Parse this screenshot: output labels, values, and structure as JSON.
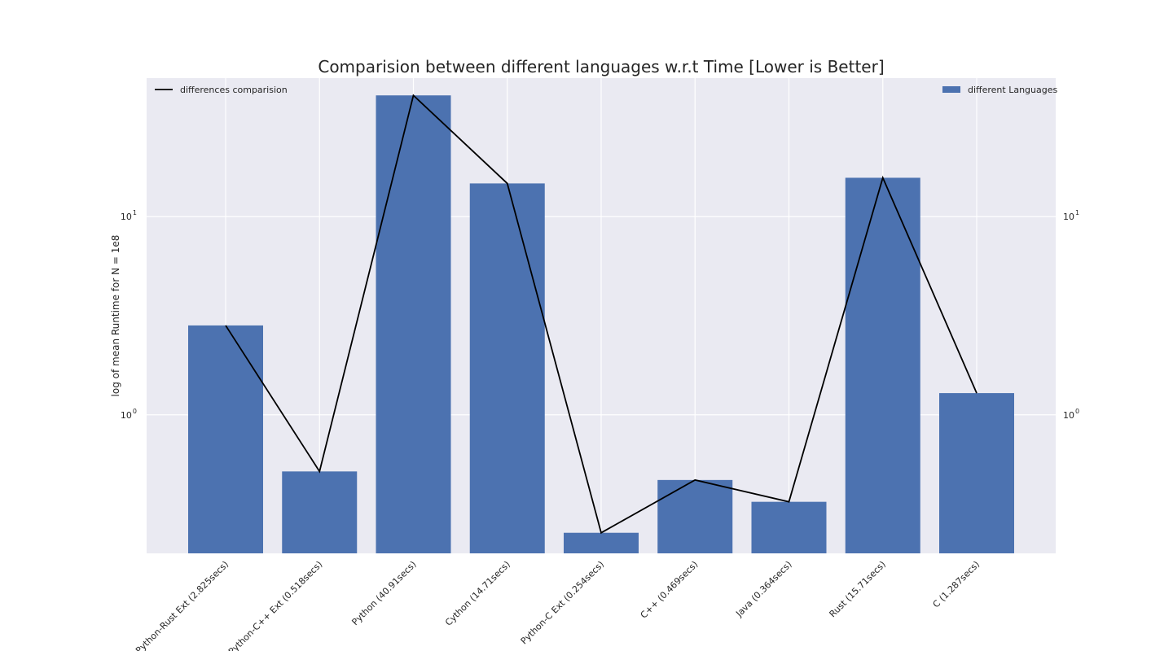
{
  "chart_data": {
    "type": "bar",
    "title": "Comparision between different languages w.r.t Time [Lower is Better]",
    "xlabel": "",
    "ylabel": "log of mean Runtime for N = 1e8",
    "yscale": "log",
    "ylim": [
      0.2,
      50
    ],
    "y_ticks": [
      1,
      10
    ],
    "grid": true,
    "categories": [
      "Python-Rust Ext (2.825secs)",
      "Python-C++ Ext (0.518secs)",
      "Python (40.91secs)",
      "Cython (14.71secs)",
      "Python-C Ext (0.254secs)",
      "C++ (0.469secs)",
      "Java (0.364secs)",
      "Rust (15.71secs)",
      "C (1.287secs)"
    ],
    "series": [
      {
        "name": "different Languages",
        "kind": "bar",
        "color": "#4c72b0",
        "values": [
          2.825,
          0.518,
          40.91,
          14.71,
          0.254,
          0.469,
          0.364,
          15.71,
          1.287
        ]
      },
      {
        "name": "differences comparision",
        "kind": "line",
        "color": "#000000",
        "values": [
          2.825,
          0.518,
          40.91,
          14.71,
          0.254,
          0.469,
          0.364,
          15.71,
          1.287
        ]
      }
    ],
    "legends": [
      {
        "placement": "top-left",
        "label": "differences comparision"
      },
      {
        "placement": "top-right",
        "label": "different Languages"
      }
    ]
  }
}
